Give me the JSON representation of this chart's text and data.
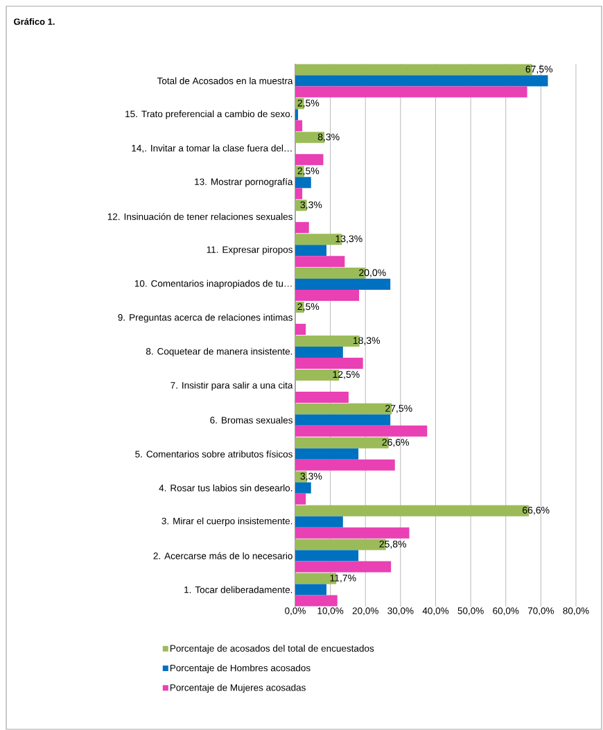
{
  "chart_data": {
    "type": "bar",
    "orientation": "horizontal",
    "title": "Gráfico 1.",
    "categories": [
      "Total de Acosados en la muestra",
      "15. Trato preferencial a cambio de sexo.",
      "14,. Invitar a tomar la clase fuera del…",
      "13. Mostrar pornografía",
      "12. Insinuación de tener relaciones sexuales",
      "11. Expresar piropos",
      "10. Comentarios inapropiados de tu…",
      "9. Preguntas acerca de relaciones intimas",
      "8. Coquetear de manera insistente.",
      "7. Insistir para salir a una cita",
      "6. Bromas sexuales",
      "5. Comentarios sobre atributos físicos",
      "4. Rosar tus labios sin desearlo.",
      "3. Mirar el cuerpo insistemente.",
      "2. Acercarse más de lo necesario",
      "1. Tocar deliberadamente."
    ],
    "series": [
      {
        "name": "Porcentaje de acosados del total de encuestados",
        "color": "#9bbb59",
        "values": [
          67.5,
          2.5,
          8.3,
          2.5,
          3.3,
          13.3,
          20.0,
          2.5,
          18.3,
          12.5,
          27.5,
          26.6,
          3.3,
          66.6,
          25.8,
          11.7
        ],
        "value_labels": [
          "67,5%",
          "2,5%",
          "8,3%",
          "2,5%",
          "3,3%",
          "13,3%",
          "20,0%",
          "2,5%",
          "18,3%",
          "12,5%",
          "27,5%",
          "26,6%",
          "3,3%",
          "66,6%",
          "25,8%",
          "11,7%"
        ]
      },
      {
        "name": "Porcentaje de Hombres acosados",
        "color": "#0070c0",
        "values": [
          72.0,
          0.8,
          0,
          4.5,
          0,
          8.9,
          27.1,
          0,
          13.6,
          0,
          27.1,
          18.0,
          4.5,
          13.6,
          18.0,
          8.9
        ]
      },
      {
        "name": "Porcentaje de Mujeres acosadas",
        "color": "#e940b4",
        "values": [
          66.1,
          2.0,
          8.0,
          2.0,
          3.9,
          14.1,
          18.2,
          3.0,
          19.3,
          15.2,
          37.6,
          28.4,
          3.0,
          32.5,
          27.3,
          12.0
        ]
      }
    ],
    "xlim": [
      0,
      80
    ],
    "xticks": [
      {
        "value": 0,
        "label": "0,0%"
      },
      {
        "value": 10,
        "label": "10,0%"
      },
      {
        "value": 20,
        "label": "20,0%"
      },
      {
        "value": 30,
        "label": "30,0%"
      },
      {
        "value": 40,
        "label": "40,0%"
      },
      {
        "value": 50,
        "label": "50,0%"
      },
      {
        "value": 60,
        "label": "60,0%"
      },
      {
        "value": 70,
        "label": "70,0%"
      },
      {
        "value": 80,
        "label": "80,0%"
      }
    ],
    "grid": "x",
    "legend": "bottom"
  }
}
